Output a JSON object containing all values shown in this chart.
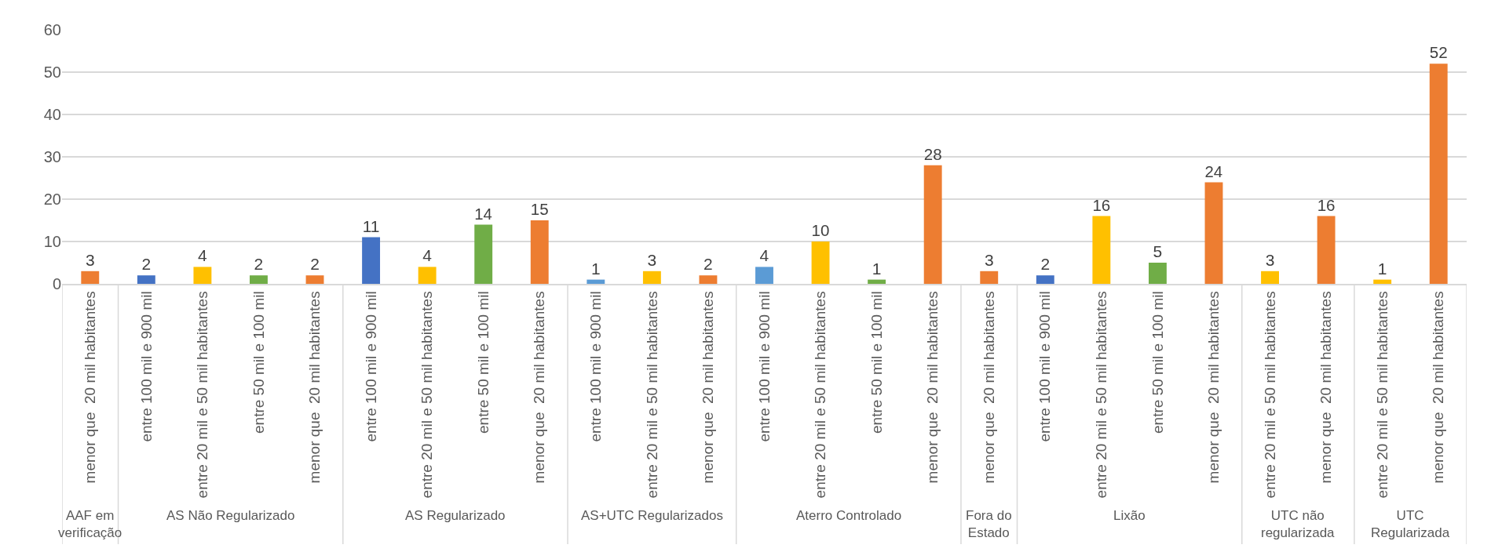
{
  "chart_data": {
    "type": "bar",
    "categories": [
      [
        "AAF em verificação",
        "menor que  20 mil habitantes"
      ],
      [
        "AS Não Regularizado",
        "entre 100 mil e 900 mil"
      ],
      [
        null,
        "entre 20 mil e 50 mil habitantes"
      ],
      [
        null,
        "entre 50 mil e 100 mil"
      ],
      [
        null,
        "menor que  20 mil habitantes"
      ],
      [
        "AS Regularizado",
        "entre 100 mil e 900 mil"
      ],
      [
        null,
        "entre 20 mil e 50 mil habitantes"
      ],
      [
        null,
        "entre 50 mil e 100 mil"
      ],
      [
        null,
        "menor que  20 mil habitantes"
      ],
      [
        "AS+UTC Regularizados",
        "entre 100 mil e 900 mil"
      ],
      [
        null,
        "entre 20 mil e 50 mil habitantes"
      ],
      [
        null,
        "menor que  20 mil habitantes"
      ],
      [
        "Aterro Controlado",
        "entre 100 mil e 900 mil"
      ],
      [
        null,
        "entre 20 mil e 50 mil habitantes"
      ],
      [
        null,
        "entre 50 mil e 100 mil"
      ],
      [
        null,
        "menor que  20 mil habitantes"
      ],
      [
        "Fora do Estado",
        "menor que  20 mil habitantes"
      ],
      [
        "Lixão",
        "entre 100 mil e 900 mil"
      ],
      [
        null,
        "entre 20 mil e 50 mil habitantes"
      ],
      [
        null,
        "entre 50 mil e 100 mil"
      ],
      [
        null,
        "menor que  20 mil habitantes"
      ],
      [
        "UTC não regularizada",
        "entre 20 mil e 50 mil habitantes"
      ],
      [
        null,
        "menor que  20 mil habitantes"
      ],
      [
        "UTC Regularizada",
        "entre 20 mil e 50 mil habitantes"
      ],
      [
        null,
        "menor que  20 mil habitantes"
      ]
    ],
    "values": [
      3,
      2,
      4,
      2,
      2,
      11,
      4,
      14,
      15,
      1,
      3,
      2,
      4,
      10,
      1,
      28,
      3,
      2,
      16,
      5,
      24,
      3,
      16,
      1,
      52
    ],
    "colors": [
      "#ed7d31",
      "#4472c4",
      "#ffc000",
      "#70ad47",
      "#ed7d31",
      "#4472c4",
      "#ffc000",
      "#70ad47",
      "#ed7d31",
      "#5b9bd5",
      "#ffc000",
      "#ed7d31",
      "#5b9bd5",
      "#ffc000",
      "#70ad47",
      "#ed7d31",
      "#ed7d31",
      "#4472c4",
      "#ffc000",
      "#70ad47",
      "#ed7d31",
      "#ffc000",
      "#ed7d31",
      "#ffc000",
      "#ed7d31"
    ],
    "ylim": [
      0,
      60
    ],
    "yticks": [
      0,
      10,
      20,
      30,
      40,
      50,
      60
    ],
    "grid": "y",
    "data_labels": true
  }
}
